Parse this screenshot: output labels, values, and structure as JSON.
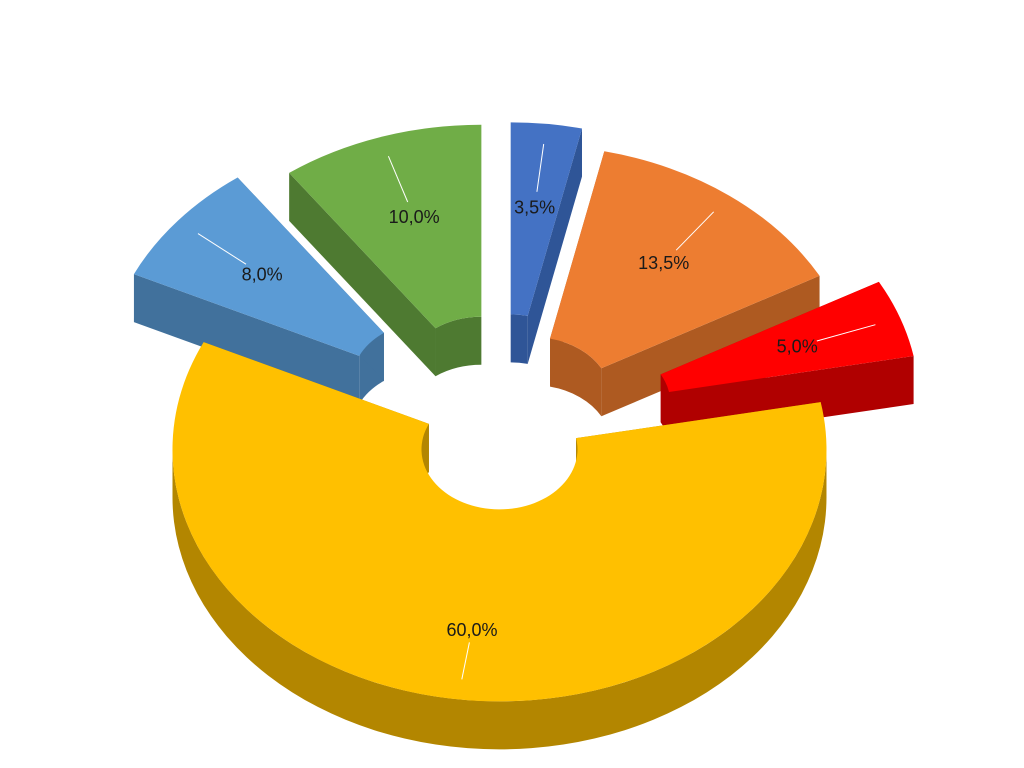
{
  "chart_data": {
    "type": "pie",
    "style": "3d-exploded-doughnut",
    "start_angle_deg": 0,
    "direction": "clockwise",
    "legend": "none",
    "label_format": "percent with comma decimal",
    "slices": [
      {
        "label": "3,5%",
        "value": 3.5,
        "color": "#4472c4",
        "side_color": "#2f5597"
      },
      {
        "label": "13,5%",
        "value": 13.5,
        "color": "#ed7d31",
        "side_color": "#ae5a21"
      },
      {
        "label": "5,0%",
        "value": 5.0,
        "color": "#ff0000",
        "side_color": "#b00000"
      },
      {
        "label": "60,0%",
        "value": 60.0,
        "color": "#ffc000",
        "side_color": "#b38600"
      },
      {
        "label": "8,0%",
        "value": 8.0,
        "color": "#5b9bd5",
        "side_color": "#41719c"
      },
      {
        "label": "10,0%",
        "value": 10.0,
        "color": "#70ad47",
        "side_color": "#4e7a31"
      }
    ]
  }
}
